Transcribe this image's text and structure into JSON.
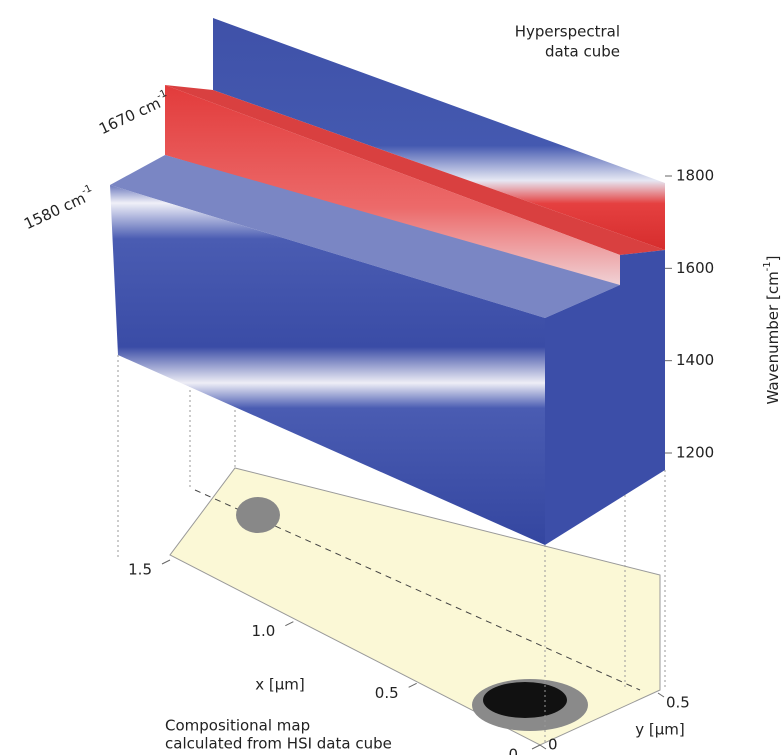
{
  "cube": {
    "title_lines": [
      "Hyperspectral",
      "data cube"
    ],
    "slices": [
      {
        "label": "1670 cm",
        "sup": "-1"
      },
      {
        "label": "1580 cm",
        "sup": "-1"
      }
    ],
    "wavenumber_axis": {
      "label": "Wavenumber [cm",
      "label_sup": "-1",
      "label_end": "]",
      "ticks": [
        1800,
        1600,
        1400,
        1200
      ]
    }
  },
  "map": {
    "title_lines": [
      "Compositional map",
      "calculated from HSI data cube"
    ],
    "x_axis": {
      "label": "x [µm]",
      "ticks": [
        {
          "value": 1.5,
          "label": "1.5"
        },
        {
          "value": 1,
          "label": "1.0"
        },
        0.5,
        0
      ]
    },
    "y_axis": {
      "label": "y [µm]",
      "ticks": [
        0.5,
        0
      ]
    }
  }
}
